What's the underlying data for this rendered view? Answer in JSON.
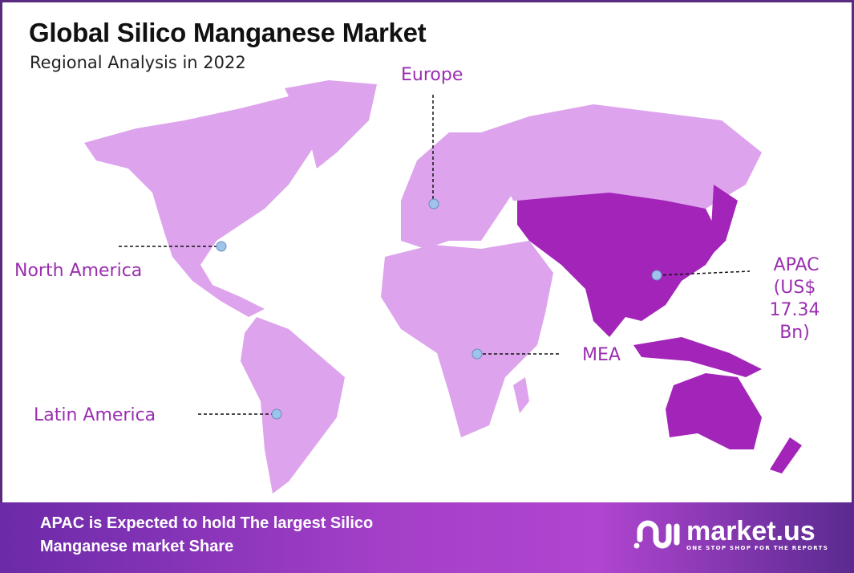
{
  "header": {
    "title": "Global Silico Manganese Market",
    "subtitle": "Regional Analysis in 2022"
  },
  "regions": [
    {
      "name": "North America",
      "highlighted": false
    },
    {
      "name": "Europe",
      "highlighted": false
    },
    {
      "name": "APAC",
      "value": "(US$ 17.34 Bn)",
      "highlighted": true
    },
    {
      "name": "MEA",
      "highlighted": false
    },
    {
      "name": "Latin America",
      "highlighted": false
    }
  ],
  "colors": {
    "base_region": "#dda3ec",
    "highlight_region": "#a324b8",
    "label": "#9a2fb0",
    "marker": "#9ec3ec",
    "frame": "#5a2a80"
  },
  "footer": {
    "text_line1": "APAC is Expected to hold The largest Silico",
    "text_line2": "Manganese market Share",
    "logo_word": "market.us",
    "logo_tagline": "ONE STOP SHOP FOR THE REPORTS"
  }
}
